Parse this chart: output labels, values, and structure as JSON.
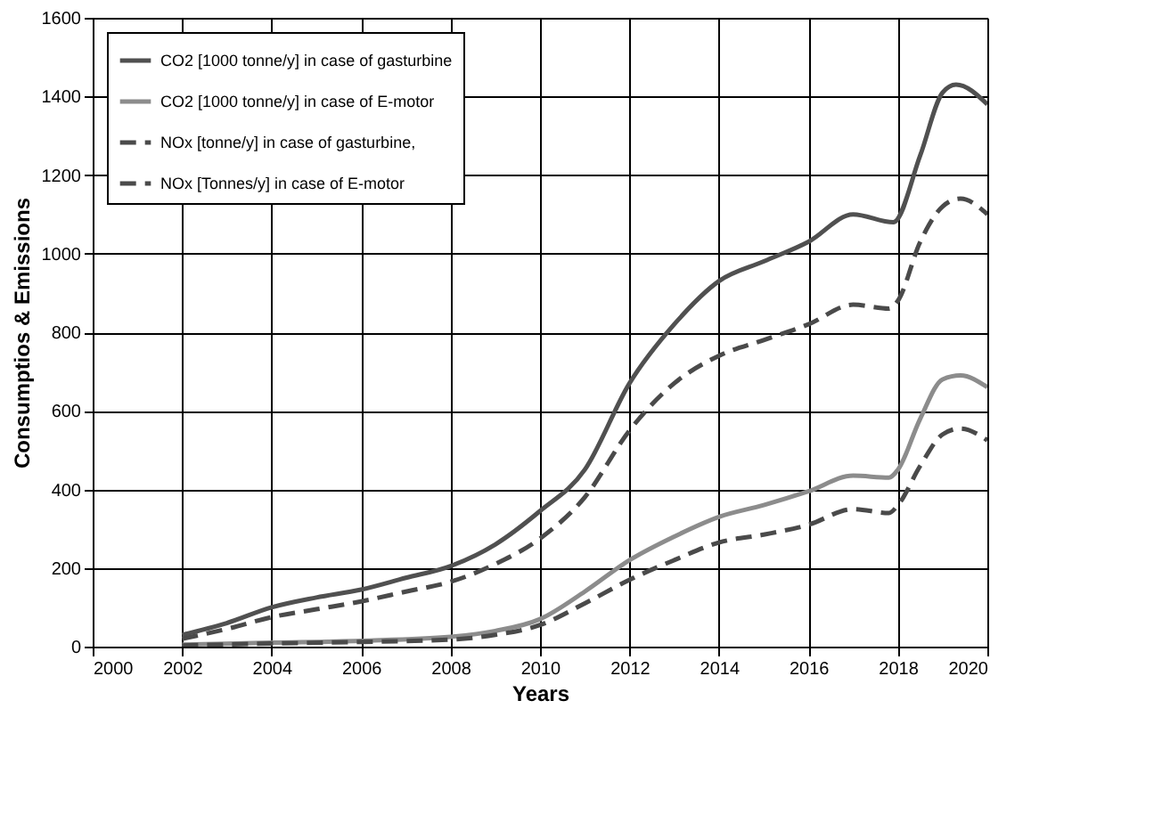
{
  "chart_data": {
    "type": "line",
    "xlabel": "Years",
    "ylabel": "Consumptios & Emissions",
    "xlim": [
      2000,
      2020
    ],
    "xticks": [
      2000,
      2002,
      2004,
      2006,
      2008,
      2010,
      2012,
      2014,
      2016,
      2018,
      2020
    ],
    "ylim": [
      0,
      1600
    ],
    "yticks": [
      0,
      200,
      400,
      600,
      800,
      1000,
      1200,
      1400,
      1600
    ],
    "grid": true,
    "legend": "top left",
    "marker": "none",
    "series": [
      {
        "name": "CO2 [1000 tonne/y] in case of gasturbine",
        "color": "#505050",
        "line_style": "solid",
        "x": [
          2002,
          2003,
          2004,
          2005,
          2006,
          2007,
          2008,
          2009,
          2010,
          2011,
          2012,
          2013,
          2014,
          2015,
          2016,
          2017,
          2017.9,
          2018.5,
          2019,
          2019.3,
          2020
        ],
        "values": [
          30,
          60,
          100,
          125,
          145,
          175,
          205,
          260,
          345,
          450,
          670,
          820,
          930,
          980,
          1030,
          1100,
          1080,
          1250,
          1410,
          1430,
          1380
        ]
      },
      {
        "name": "CO2 [1000 tonne/y] in case of E-motor",
        "color": "#8c8c8c",
        "line_style": "solid",
        "x": [
          2002,
          2004,
          2006,
          2008,
          2009,
          2010,
          2011,
          2012,
          2013,
          2014,
          2015,
          2016,
          2017,
          2017.8,
          2018,
          2018.5,
          2019,
          2019.4,
          2020
        ],
        "values": [
          5,
          10,
          15,
          25,
          40,
          70,
          140,
          220,
          280,
          330,
          360,
          395,
          435,
          430,
          450,
          580,
          680,
          690,
          660
        ]
      },
      {
        "name": "NOx [tonne/y] in case of gasturbine,",
        "color": "#4a4a4a",
        "line_style": "dashed",
        "x": [
          2002,
          2003,
          2004,
          2005,
          2006,
          2007,
          2008,
          2009,
          2010,
          2011,
          2012,
          2013,
          2014,
          2015,
          2016,
          2017,
          2017.8,
          2018,
          2018.5,
          2019,
          2019.4,
          2020
        ],
        "values": [
          20,
          45,
          75,
          95,
          115,
          140,
          165,
          210,
          275,
          380,
          550,
          670,
          740,
          780,
          820,
          870,
          860,
          880,
          1030,
          1120,
          1140,
          1100
        ]
      },
      {
        "name": "NOx [Tonnes/y] in case of E-motor",
        "color": "#4a4a4a",
        "line_style": "dashed",
        "x": [
          2002,
          2004,
          2006,
          2008,
          2009,
          2010,
          2011,
          2012,
          2013,
          2014,
          2015,
          2016,
          2017,
          2017.8,
          2018,
          2018.5,
          2019,
          2019.4,
          2020
        ],
        "values": [
          3,
          8,
          12,
          18,
          30,
          55,
          110,
          170,
          220,
          265,
          285,
          310,
          350,
          340,
          360,
          460,
          540,
          555,
          525
        ]
      }
    ]
  }
}
